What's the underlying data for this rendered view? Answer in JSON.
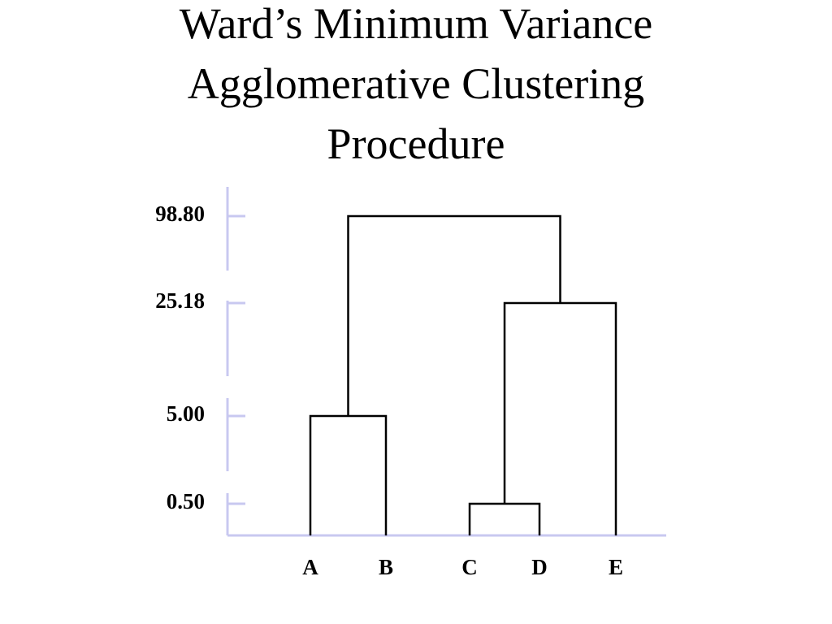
{
  "chart_data": {
    "type": "dendrogram",
    "title": "Ward’s Minimum Variance Agglomerative Clustering Procedure",
    "leaves": [
      "A",
      "B",
      "C",
      "D",
      "E"
    ],
    "yticks": [
      {
        "value": 98.8,
        "label": "98.80"
      },
      {
        "value": 25.18,
        "label": "25.18"
      },
      {
        "value": 5.0,
        "label": "5.00"
      },
      {
        "value": 0.5,
        "label": "0.50"
      }
    ],
    "merges": [
      {
        "children": [
          0,
          1
        ],
        "height": 5.0
      },
      {
        "children": [
          2,
          3
        ],
        "height": 0.5
      },
      {
        "children": [
          6,
          4
        ],
        "height": 25.18
      },
      {
        "children": [
          5,
          7
        ],
        "height": 98.8
      }
    ],
    "color": "#000000",
    "axis_color": "#c8c8f0"
  }
}
